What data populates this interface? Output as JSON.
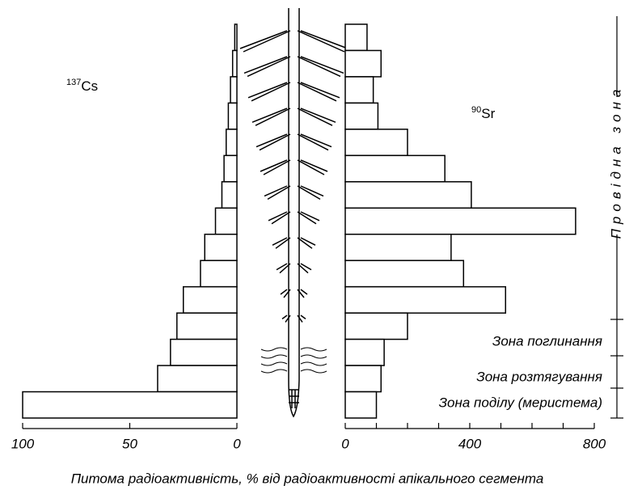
{
  "chart_data": [
    {
      "type": "bar",
      "orientation": "horizontal",
      "reversed": true,
      "isotope_mass": "137",
      "isotope_symbol": "Cs",
      "values": [
        1,
        2,
        3,
        4,
        5,
        6,
        7,
        10,
        15,
        17,
        25,
        28,
        31,
        37,
        100
      ],
      "color": "#ffffff",
      "xlim": [
        0,
        100
      ],
      "xticks": [
        0,
        50,
        100
      ]
    },
    {
      "type": "bar",
      "orientation": "horizontal",
      "reversed": false,
      "isotope_mass": "90",
      "isotope_symbol": "Sr",
      "values": [
        70,
        115,
        90,
        105,
        200,
        320,
        405,
        740,
        340,
        380,
        515,
        200,
        125,
        115,
        100
      ],
      "color": "#ffffff",
      "xlim": [
        0,
        800
      ],
      "xticks": [
        0,
        400,
        800
      ],
      "minor_xticks": [
        100,
        200,
        300,
        500,
        600,
        700
      ]
    }
  ],
  "x_axis_title": "Питома радіоактивність, % від радіоактивності  апікального сегмента",
  "zones": {
    "conducting": "Провідна  зона",
    "absorption": "Зона поглинання",
    "elongation": "Зона  розтягування",
    "division": "Зона поділу (меристема)"
  }
}
